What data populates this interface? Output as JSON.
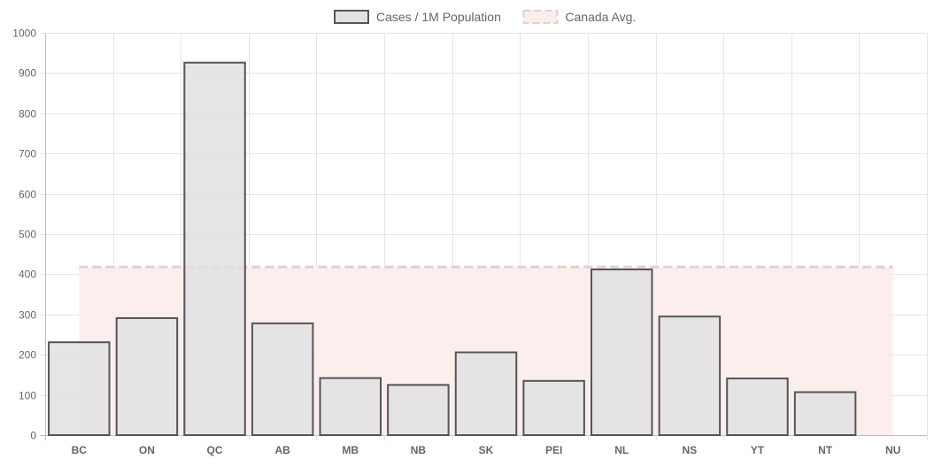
{
  "chart_data": {
    "type": "bar",
    "categories": [
      "BC",
      "ON",
      "QC",
      "AB",
      "MB",
      "NB",
      "SK",
      "PEI",
      "NL",
      "NS",
      "YT",
      "NT",
      "NU"
    ],
    "series": [
      {
        "name": "Cases / 1M Population",
        "type": "bar",
        "values": [
          233,
          293,
          928,
          280,
          144,
          127,
          208,
          137,
          414,
          297,
          143,
          109,
          0
        ],
        "fill": "#e0e1e0",
        "stroke": "#555555"
      },
      {
        "name": "Canada Avg.",
        "type": "line-area",
        "values": [
          418,
          418,
          418,
          418,
          418,
          418,
          418,
          418,
          418,
          418,
          418,
          418,
          418
        ],
        "fill": "#fdeded",
        "stroke": "#e3d0d0",
        "dashed": true
      }
    ],
    "yticks": [
      "0",
      "100",
      "200",
      "300",
      "400",
      "500",
      "600",
      "700",
      "800",
      "900",
      "1000"
    ],
    "ylim": [
      0,
      1000
    ],
    "grid": true,
    "legend": "top-center"
  }
}
